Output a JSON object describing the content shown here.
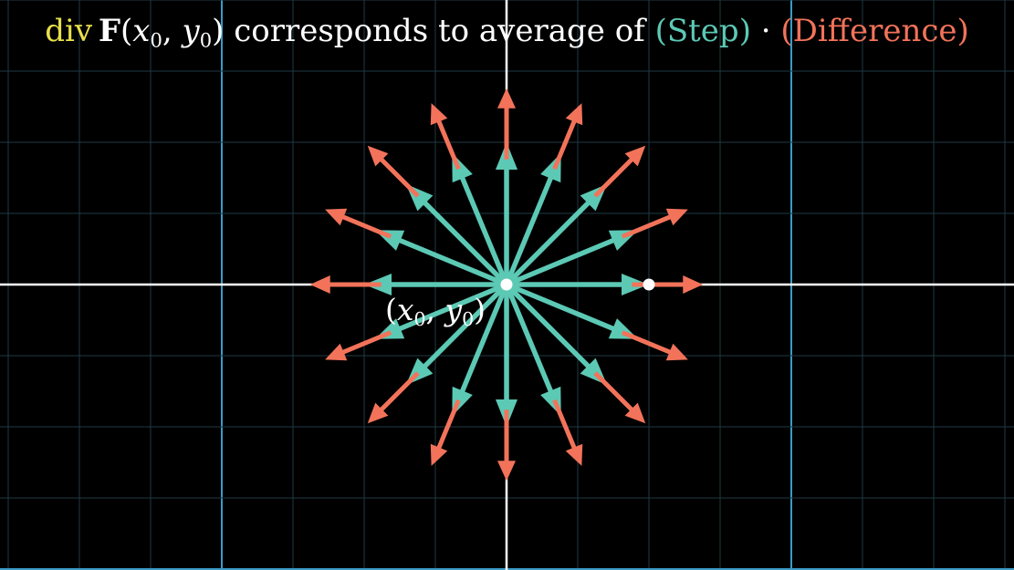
{
  "title": {
    "div": "div",
    "field": "F",
    "paren_open": "(",
    "x": "x",
    "x_sub": "0",
    "comma": ", ",
    "y": "y",
    "y_sub": "0",
    "paren_close": ")",
    "middle": " corresponds to average of ",
    "step_open": "(",
    "step": "Step",
    "step_close": ")",
    "dot": " · ",
    "diff_open": "(",
    "difference": "Difference",
    "diff_close": ")"
  },
  "point_label": {
    "open": "(",
    "x": "x",
    "x_sub": "0",
    "comma": ", ",
    "y": "y",
    "y_sub": "0",
    "close": ")"
  },
  "colors": {
    "background": "#000000",
    "grid_fine": "#1f3a45",
    "grid_major": "#3a9bc6",
    "axis": "#ffffff",
    "step": "#5cc9b5",
    "difference": "#f2735a",
    "div_text": "#e8e04a"
  },
  "vectors": {
    "count": 16,
    "step_length": 1,
    "difference_length": 0.5,
    "outward": true
  }
}
